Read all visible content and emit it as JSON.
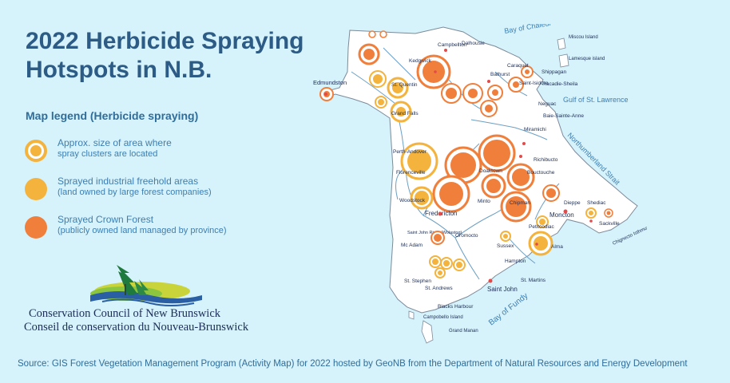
{
  "title_line1": "2022 Herbicide Spraying",
  "title_line2": "Hotspots in N.B.",
  "legend": {
    "title": "Map legend (Herbicide spraying)",
    "items": [
      {
        "line1": "Approx. size of area where",
        "line2": "spray clusters are located",
        "symbol": "ring"
      },
      {
        "line1": "Sprayed industrial freehold areas",
        "line2": "(land owned by large forest companies)",
        "color": "#f3b33d"
      },
      {
        "line1": "Sprayed Crown Forest",
        "line2": "(publicly owned land managed by province)",
        "color": "#f07f3c"
      }
    ]
  },
  "organization": {
    "name_en": "Conservation Council of New Brunswick",
    "name_fr": "Conseil de conservation du Nouveau-Brunswick"
  },
  "source": "Source: GIS Forest Vegetation Management Program (Activity Map) for 2022 hosted by GeoNB from the Department of Natural Resources and Energy Development",
  "colors": {
    "background": "#d6f2fb",
    "land": "#ffffff",
    "freehold": "#f3b33d",
    "crown": "#f07f3c",
    "water_label": "#3d7fb2",
    "title": "#2c5b85"
  },
  "map_labels": {
    "water": [
      "Bay of Chaleur",
      "Gulf of St. Lawrence",
      "Northumberland Strait",
      "Bay of Fundy",
      "Chignecto Isthmus",
      "Saint John River (Wolastoq)"
    ],
    "places": [
      "Campbellton",
      "Dalhousie",
      "Kedgwick",
      "Edmundston",
      "St. Quentin",
      "Grand Falls",
      "Bathurst",
      "Caraquet",
      "Shippagan",
      "Miscou Island",
      "Lamesque island",
      "Tracadie-Sheila",
      "Saint-Isidore",
      "Neguac",
      "Baie-Sainte-Anne",
      "Miramichi",
      "Richibucto",
      "Bouctouche",
      "Perth-Andover",
      "Florenceville",
      "Woodstock",
      "Doaktown",
      "Minto",
      "Chipman",
      "Fredericton",
      "Oromocto",
      "Dieppe",
      "Shediac",
      "Moncton",
      "Sackville",
      "Petitcodiac",
      "Sussex",
      "Alma",
      "Mc Adam",
      "Hampton",
      "St. Stephen",
      "St. Andrews",
      "Saint John",
      "St. Martins",
      "Blacks Harbour",
      "Campobello Island",
      "Grand Manan"
    ]
  }
}
